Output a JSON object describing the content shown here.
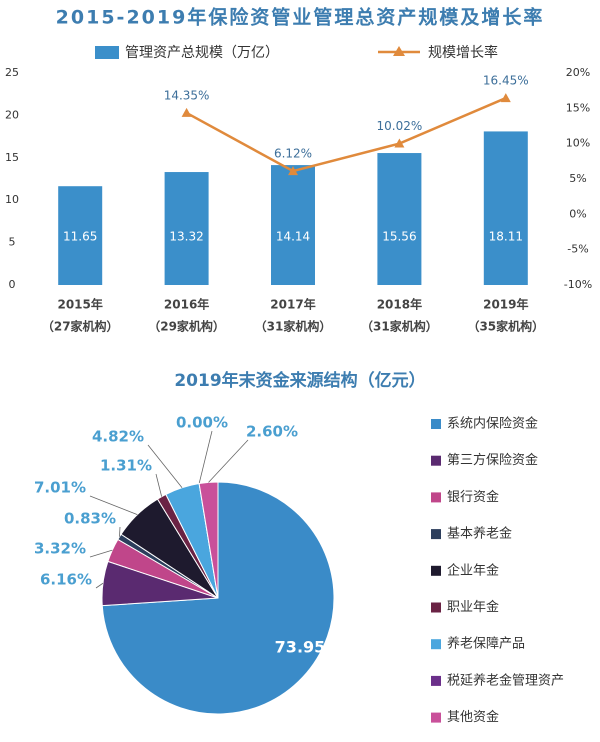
{
  "chart_data": [
    {
      "type": "bar_line",
      "title": "2015-2019年保险资管业管理总资产规模及增长率",
      "categories": [
        [
          "2015年",
          "（27家机构）"
        ],
        [
          "2016年",
          "（29家机构）"
        ],
        [
          "2017年",
          "（31家机构）"
        ],
        [
          "2018年",
          "（31家机构）"
        ],
        [
          "2019年",
          "（35家机构）"
        ]
      ],
      "series": [
        {
          "name": "管理资产总规模（万亿）",
          "type": "bar",
          "color": "#3b8fca",
          "values": [
            11.65,
            13.32,
            14.14,
            15.56,
            18.11
          ]
        },
        {
          "name": "规模增长率",
          "type": "line",
          "axis": "y2",
          "color": "#e08a3c",
          "values": [
            null,
            14.35,
            6.12,
            10.02,
            16.45
          ],
          "value_labels": [
            null,
            "14.35%",
            "6.12%",
            "10.02%",
            "16.45%"
          ]
        }
      ],
      "ylim": [
        0,
        25
      ],
      "yticks": [
        0,
        5,
        10,
        15,
        20,
        25
      ],
      "y2lim": [
        -10,
        20
      ],
      "y2ticks": [
        {
          "value": -10,
          "label": "-10%"
        },
        {
          "value": -5,
          "label": "-5%"
        },
        {
          "value": 0,
          "label": "0%"
        },
        {
          "value": 5,
          "label": "5%"
        },
        {
          "value": 10,
          "label": "10%"
        },
        {
          "value": 15,
          "label": "15%"
        },
        {
          "value": 20,
          "label": "20%"
        }
      ],
      "legend": "top"
    },
    {
      "type": "pie",
      "title": "2019年末资金来源结构（亿元）",
      "categories": [
        "系统内保险资金",
        "第三方保险资金",
        "银行资金",
        "基本养老金",
        "企业年金",
        "职业年金",
        "养老保障产品",
        "税延养老金管理资产",
        "其他资金"
      ],
      "values": [
        73.95,
        6.16,
        3.32,
        0.83,
        7.01,
        1.31,
        4.82,
        0.0,
        2.6
      ],
      "value_labels": [
        "73.95%",
        "6.16%",
        "3.32%",
        "0.83%",
        "7.01%",
        "1.31%",
        "4.82%",
        "0.00%",
        "2.60%"
      ],
      "colors": [
        "#3a8bc8",
        "#5a2a70",
        "#c0468a",
        "#2c3e5c",
        "#1e1a2e",
        "#6a2344",
        "#4aa6de",
        "#6b2f8a",
        "#c9509a"
      ],
      "legend": "right"
    }
  ]
}
